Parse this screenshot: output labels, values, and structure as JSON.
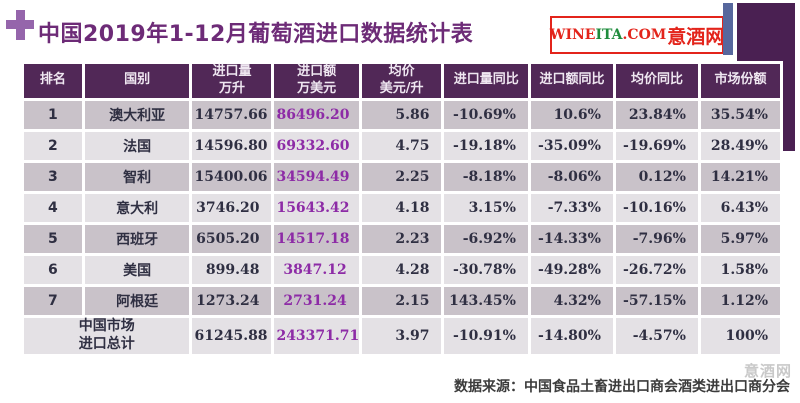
{
  "page": {
    "title": "中国2019年1-12月葡萄酒进口数据统计表",
    "logo": {
      "wine": "WINE",
      "ita": "ITA",
      "com": ".COM",
      "cn": "意酒网"
    },
    "watermark": "意酒网",
    "source": "数据来源：中国食品土畜进出口商会酒类进出口商分会"
  },
  "colors": {
    "header_bg": "#512857",
    "row_odd": "#c9c2c9",
    "row_even": "#e4e1e5",
    "text_dark": "#2f2f42",
    "value_purple": "#8d2ba6",
    "title_purple": "#6d2b77",
    "logo_red": "#e3241b",
    "logo_green": "#1e8c3c",
    "bar_blue": "#57679d",
    "block_purple": "#4a2052",
    "plus_purple": "#9565ab",
    "watermark_gray": "#c9c9c9",
    "footer_text": "#3b3b3b"
  },
  "chart_data": {
    "type": "table",
    "title": "中国2019年1-12月葡萄酒进口数据统计表",
    "headers": [
      [
        "排名"
      ],
      [
        "国别"
      ],
      [
        "进口量",
        "万升"
      ],
      [
        "进口额",
        "万美元"
      ],
      [
        "均价",
        "美元/升"
      ],
      [
        "进口量同比"
      ],
      [
        "进口额同比"
      ],
      [
        "均价同比"
      ],
      [
        "市场份额"
      ]
    ],
    "rows": [
      [
        "1",
        "澳大利亚",
        "14757.66",
        "86496.20",
        "5.86",
        "-10.69%",
        "10.6%",
        "23.84%",
        "35.54%"
      ],
      [
        "2",
        "法国",
        "14596.80",
        "69332.60",
        "4.75",
        "-19.18%",
        "-35.09%",
        "-19.69%",
        "28.49%"
      ],
      [
        "3",
        "智利",
        "15400.06",
        "34594.49",
        "2.25",
        "-8.18%",
        "-8.06%",
        "0.12%",
        "14.21%"
      ],
      [
        "4",
        "意大利",
        "3746.20",
        "15643.42",
        "4.18",
        "3.15%",
        "-7.33%",
        "-10.16%",
        "6.43%"
      ],
      [
        "5",
        "西班牙",
        "6505.20",
        "14517.18",
        "2.23",
        "-6.92%",
        "-14.33%",
        "-7.96%",
        "5.97%"
      ],
      [
        "6",
        "美国",
        "899.48",
        "3847.12",
        "4.28",
        "-30.78%",
        "-49.28%",
        "-26.72%",
        "1.58%"
      ],
      [
        "7",
        "阿根廷",
        "1273.24",
        "2731.24",
        "2.15",
        "143.45%",
        "4.32%",
        "-57.15%",
        "1.12%"
      ]
    ],
    "total_row": {
      "label_lines": [
        "中国市场",
        "进口总计"
      ],
      "values": [
        "61245.88",
        "243371.71",
        "3.97",
        "-10.91%",
        "-14.80%",
        "-4.57%",
        "100%"
      ]
    },
    "source": "数据来源：中国食品土畜进出口商会酒类进出口商分会"
  }
}
